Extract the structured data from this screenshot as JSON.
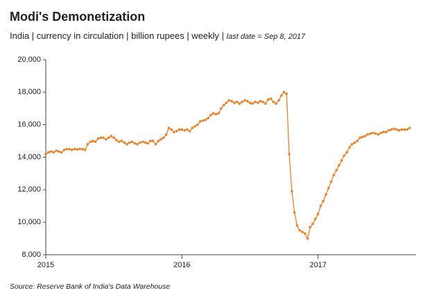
{
  "chart_data": {
    "type": "line",
    "title": "Modi's Demonetization",
    "subtitle": "India | currency in circulation | billion rupees | weekly |",
    "subtitle_note": "last date = Sep 8, 2017",
    "source": "Source: Reserve Bank of India's Data Warehouse",
    "color": "#e8822a",
    "x": [
      2015,
      2015.019,
      2015.038,
      2015.058,
      2015.077,
      2015.096,
      2015.115,
      2015.135,
      2015.154,
      2015.173,
      2015.192,
      2015.212,
      2015.231,
      2015.25,
      2015.269,
      2015.288,
      2015.308,
      2015.327,
      2015.346,
      2015.365,
      2015.385,
      2015.404,
      2015.423,
      2015.442,
      2015.462,
      2015.481,
      2015.5,
      2015.519,
      2015.538,
      2015.558,
      2015.577,
      2015.596,
      2015.615,
      2015.635,
      2015.654,
      2015.673,
      2015.692,
      2015.712,
      2015.731,
      2015.75,
      2015.769,
      2015.788,
      2015.808,
      2015.827,
      2015.846,
      2015.865,
      2015.885,
      2015.904,
      2015.923,
      2015.942,
      2015.962,
      2015.981,
      2016,
      2016.019,
      2016.038,
      2016.058,
      2016.077,
      2016.096,
      2016.115,
      2016.135,
      2016.154,
      2016.173,
      2016.192,
      2016.212,
      2016.231,
      2016.25,
      2016.269,
      2016.288,
      2016.308,
      2016.327,
      2016.346,
      2016.365,
      2016.385,
      2016.404,
      2016.423,
      2016.442,
      2016.462,
      2016.481,
      2016.5,
      2016.519,
      2016.538,
      2016.558,
      2016.577,
      2016.596,
      2016.615,
      2016.635,
      2016.654,
      2016.673,
      2016.692,
      2016.712,
      2016.731,
      2016.75,
      2016.769,
      2016.788,
      2016.808,
      2016.827,
      2016.846,
      2016.865,
      2016.885,
      2016.904,
      2016.923,
      2016.942,
      2016.962,
      2016.981,
      2017,
      2017.019,
      2017.038,
      2017.058,
      2017.077,
      2017.096,
      2017.115,
      2017.135,
      2017.154,
      2017.173,
      2017.192,
      2017.212,
      2017.231,
      2017.25,
      2017.269,
      2017.288,
      2017.308,
      2017.327,
      2017.346,
      2017.365,
      2017.385,
      2017.404,
      2017.423,
      2017.442,
      2017.462,
      2017.481,
      2017.5,
      2017.519,
      2017.538,
      2017.558,
      2017.577,
      2017.596,
      2017.615,
      2017.635,
      2017.654,
      2017.673
    ],
    "values": [
      14200,
      14300,
      14350,
      14300,
      14400,
      14350,
      14300,
      14450,
      14500,
      14500,
      14450,
      14500,
      14480,
      14500,
      14500,
      14450,
      14800,
      14950,
      15000,
      14950,
      15150,
      15200,
      15200,
      15100,
      15200,
      15300,
      15200,
      15050,
      14950,
      15000,
      14900,
      14800,
      14900,
      14950,
      14850,
      14800,
      14900,
      14950,
      14900,
      14850,
      15000,
      15000,
      14800,
      15000,
      15100,
      15200,
      15400,
      15800,
      15700,
      15550,
      15600,
      15700,
      15700,
      15650,
      15700,
      15600,
      15800,
      15900,
      16000,
      16200,
      16250,
      16300,
      16400,
      16600,
      16700,
      16650,
      16700,
      17000,
      17200,
      17350,
      17500,
      17450,
      17350,
      17400,
      17300,
      17400,
      17500,
      17450,
      17350,
      17300,
      17400,
      17350,
      17450,
      17400,
      17300,
      17550,
      17600,
      17400,
      17300,
      17500,
      17800,
      18000,
      17900,
      14200,
      11900,
      10600,
      9800,
      9500,
      9400,
      9300,
      9000,
      9700,
      9900,
      10200,
      10500,
      11000,
      11300,
      11700,
      12100,
      12500,
      12900,
      13200,
      13500,
      13800,
      14100,
      14300,
      14600,
      14800,
      14900,
      15000,
      15200,
      15250,
      15300,
      15400,
      15450,
      15500,
      15450,
      15400,
      15500,
      15550,
      15550,
      15650,
      15700,
      15750,
      15700,
      15650,
      15700,
      15700,
      15700,
      15800
    ],
    "xlim": [
      2015,
      2017.72
    ],
    "xticks": [
      2015,
      2016,
      2017
    ],
    "ylim": [
      8000,
      20000
    ],
    "yticks": [
      {
        "value": 8000,
        "label": "8,000"
      },
      {
        "value": 10000,
        "label": "10,000"
      },
      {
        "value": 12000,
        "label": "12,000"
      },
      {
        "value": 14000,
        "label": "14,000"
      },
      {
        "value": 16000,
        "label": "16,000"
      },
      {
        "value": 18000,
        "label": "18,000"
      },
      {
        "value": 20000,
        "label": "20,000"
      }
    ],
    "grid": false
  }
}
